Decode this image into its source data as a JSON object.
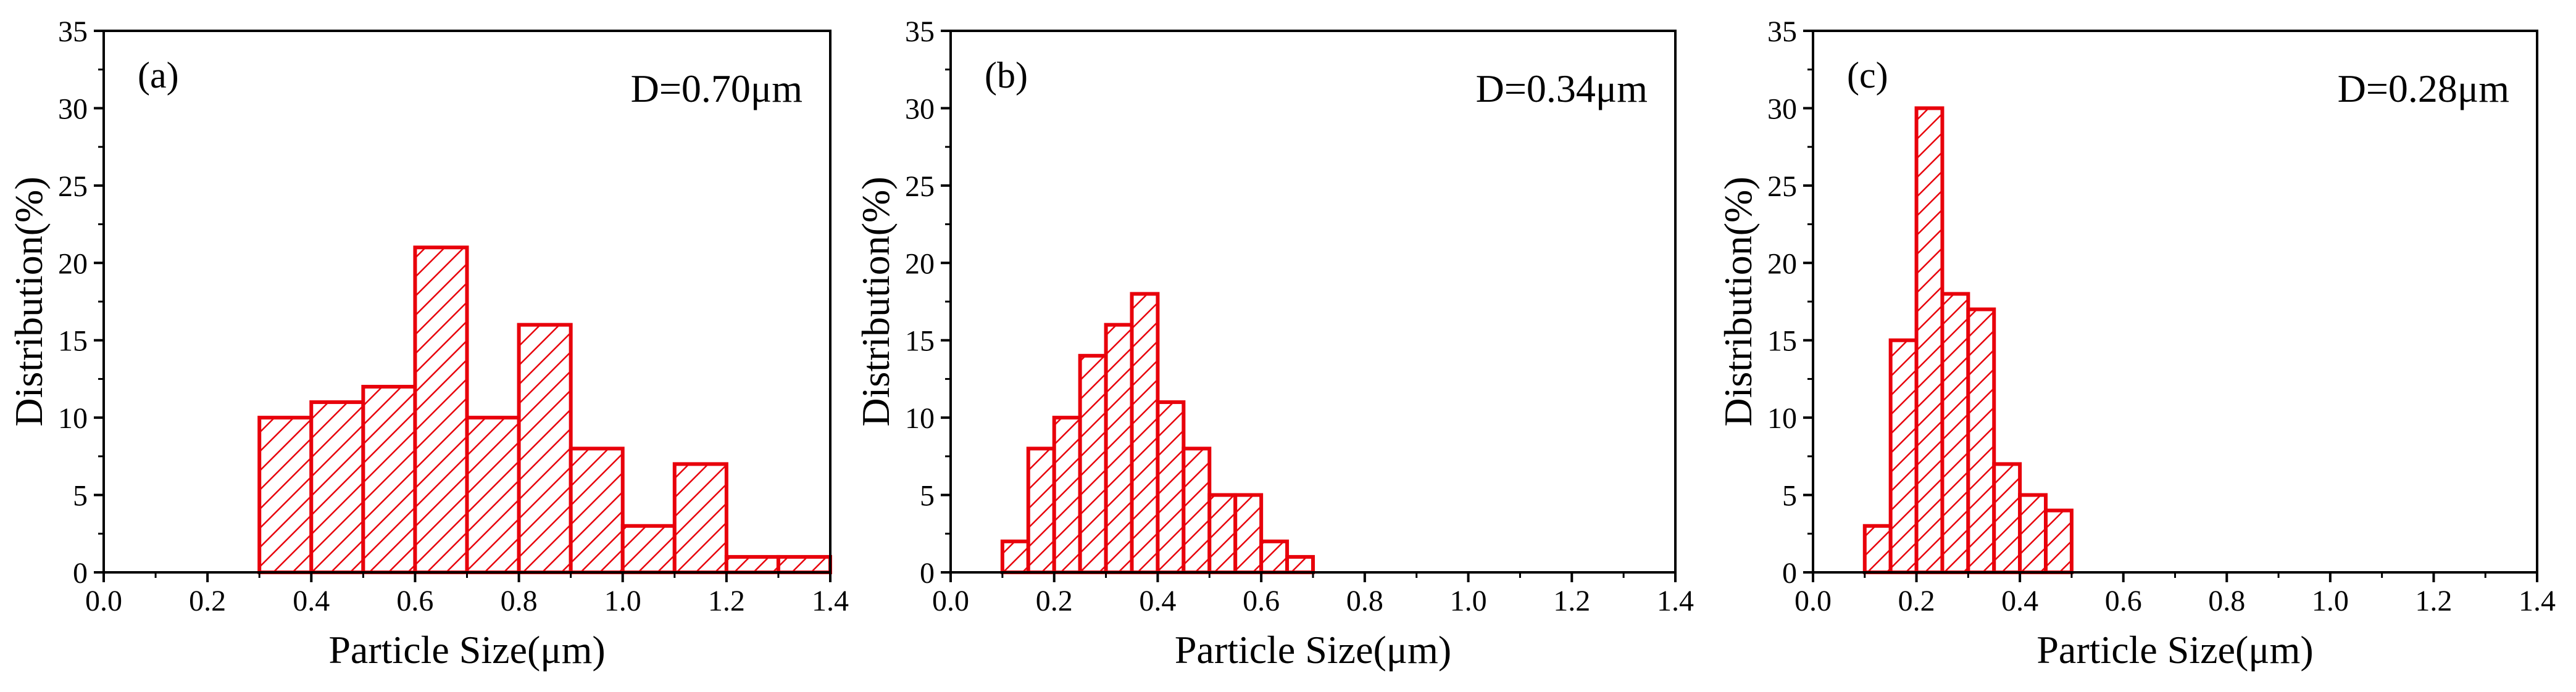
{
  "figure": {
    "colors": {
      "bar": "#e8000b",
      "axis": "#000000",
      "background": "#ffffff"
    }
  },
  "chart_data": [
    {
      "type": "bar",
      "panel_label": "(a)",
      "annotation": "D=0.70μm",
      "xlabel": "Particle Size(μm)",
      "ylabel": "Distribution(%)",
      "xlim": [
        0.0,
        1.4
      ],
      "ylim": [
        0,
        35
      ],
      "xticks": [
        "0.0",
        "0.2",
        "0.4",
        "0.6",
        "0.8",
        "1.0",
        "1.2",
        "1.4"
      ],
      "yticks": [
        "0",
        "5",
        "10",
        "15",
        "20",
        "25",
        "30",
        "35"
      ],
      "bins": [
        {
          "start": 0.3,
          "end": 0.4,
          "value": 10
        },
        {
          "start": 0.4,
          "end": 0.5,
          "value": 11
        },
        {
          "start": 0.5,
          "end": 0.6,
          "value": 12
        },
        {
          "start": 0.6,
          "end": 0.7,
          "value": 21
        },
        {
          "start": 0.7,
          "end": 0.8,
          "value": 10
        },
        {
          "start": 0.8,
          "end": 0.9,
          "value": 16
        },
        {
          "start": 0.9,
          "end": 1.0,
          "value": 8
        },
        {
          "start": 1.0,
          "end": 1.1,
          "value": 3
        },
        {
          "start": 1.1,
          "end": 1.2,
          "value": 7
        },
        {
          "start": 1.2,
          "end": 1.3,
          "value": 1
        },
        {
          "start": 1.3,
          "end": 1.4,
          "value": 1
        }
      ]
    },
    {
      "type": "bar",
      "panel_label": "(b)",
      "annotation": "D=0.34μm",
      "xlabel": "Particle Size(μm)",
      "ylabel": "Distribution(%)",
      "xlim": [
        0.0,
        1.4
      ],
      "ylim": [
        0,
        35
      ],
      "xticks": [
        "0.0",
        "0.2",
        "0.4",
        "0.6",
        "0.8",
        "1.0",
        "1.2",
        "1.4"
      ],
      "yticks": [
        "0",
        "5",
        "10",
        "15",
        "20",
        "25",
        "30",
        "35"
      ],
      "bins": [
        {
          "start": 0.1,
          "end": 0.15,
          "value": 2
        },
        {
          "start": 0.15,
          "end": 0.2,
          "value": 8
        },
        {
          "start": 0.2,
          "end": 0.25,
          "value": 10
        },
        {
          "start": 0.25,
          "end": 0.3,
          "value": 14
        },
        {
          "start": 0.3,
          "end": 0.35,
          "value": 16
        },
        {
          "start": 0.35,
          "end": 0.4,
          "value": 18
        },
        {
          "start": 0.4,
          "end": 0.45,
          "value": 11
        },
        {
          "start": 0.45,
          "end": 0.5,
          "value": 8
        },
        {
          "start": 0.5,
          "end": 0.55,
          "value": 5
        },
        {
          "start": 0.55,
          "end": 0.6,
          "value": 5
        },
        {
          "start": 0.6,
          "end": 0.65,
          "value": 2
        },
        {
          "start": 0.65,
          "end": 0.7,
          "value": 1
        }
      ]
    },
    {
      "type": "bar",
      "panel_label": "(c)",
      "annotation": "D=0.28μm",
      "xlabel": "Particle Size(μm)",
      "ylabel": "Distribution(%)",
      "xlim": [
        0.0,
        1.4
      ],
      "ylim": [
        0,
        35
      ],
      "xticks": [
        "0.0",
        "0.2",
        "0.4",
        "0.6",
        "0.8",
        "1.0",
        "1.2",
        "1.4"
      ],
      "yticks": [
        "0",
        "5",
        "10",
        "15",
        "20",
        "25",
        "30",
        "35"
      ],
      "bins": [
        {
          "start": 0.1,
          "end": 0.15,
          "value": 3
        },
        {
          "start": 0.15,
          "end": 0.2,
          "value": 15
        },
        {
          "start": 0.2,
          "end": 0.25,
          "value": 30
        },
        {
          "start": 0.25,
          "end": 0.3,
          "value": 18
        },
        {
          "start": 0.3,
          "end": 0.35,
          "value": 17
        },
        {
          "start": 0.35,
          "end": 0.4,
          "value": 7
        },
        {
          "start": 0.4,
          "end": 0.45,
          "value": 5
        },
        {
          "start": 0.45,
          "end": 0.5,
          "value": 4
        }
      ]
    }
  ]
}
